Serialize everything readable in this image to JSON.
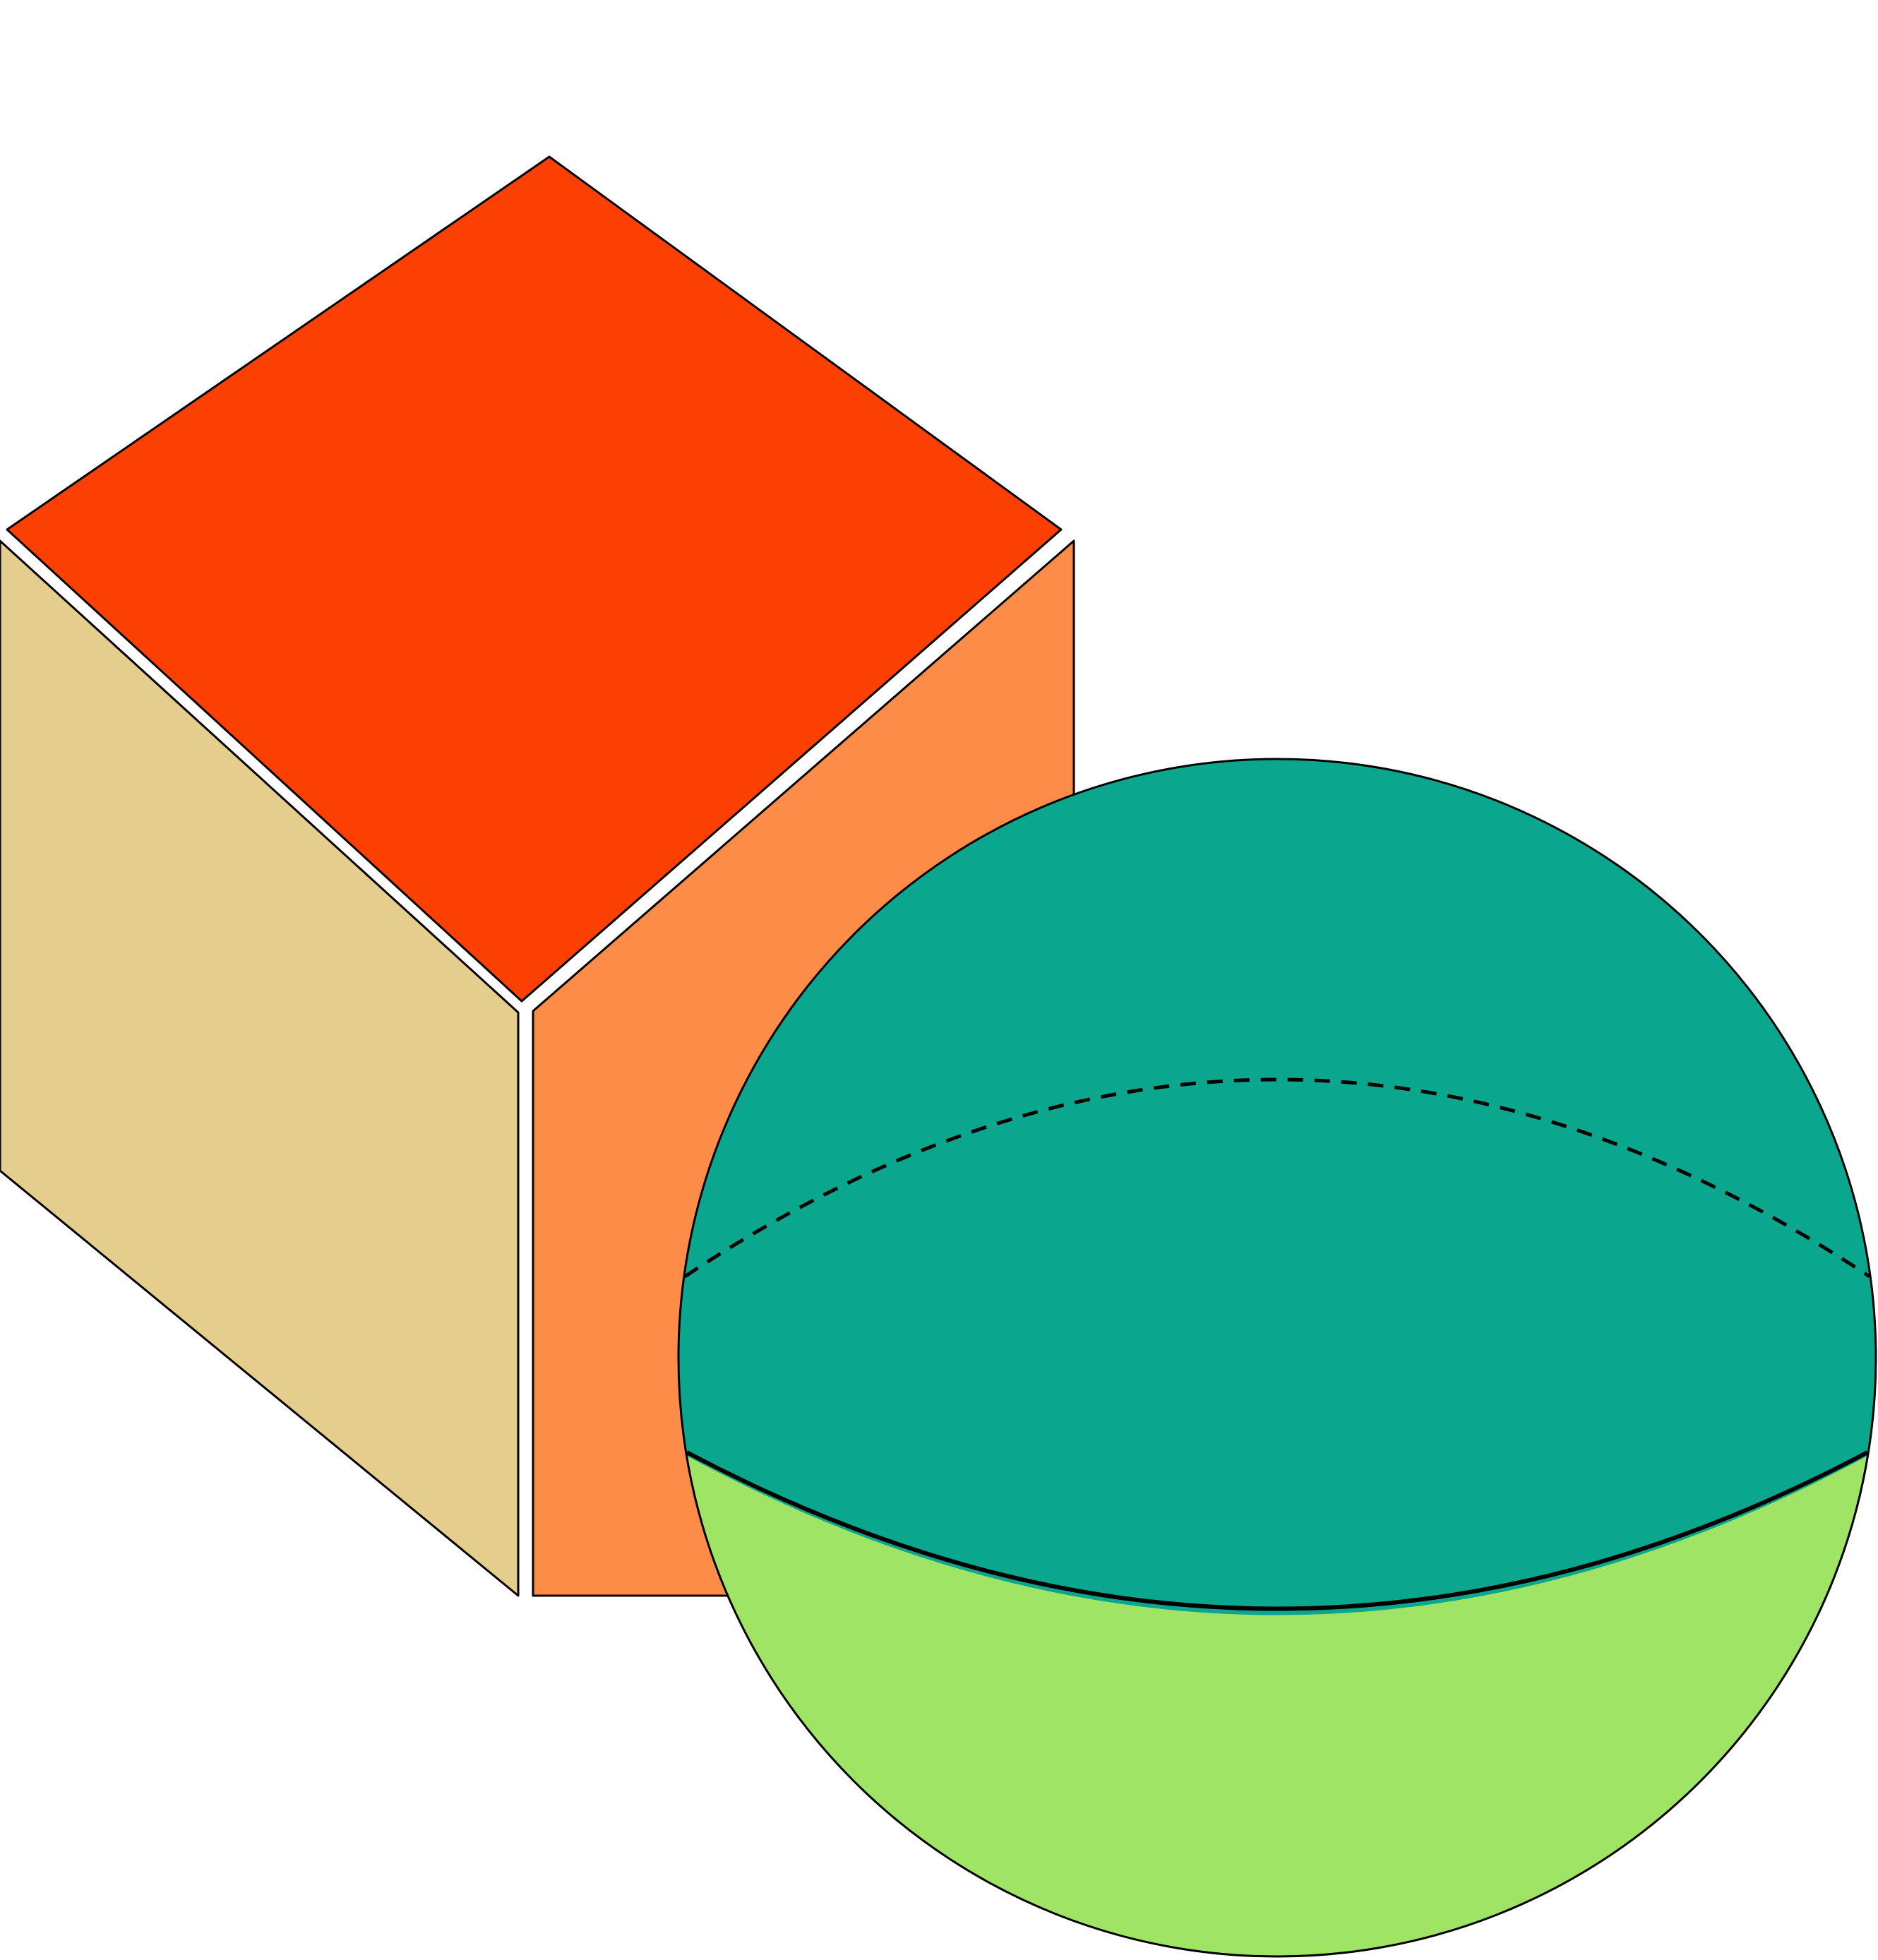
{
  "colors": {
    "background": "#ffffff",
    "outline": "#000000",
    "cube_top": "#fc4004",
    "cube_left": "#e5cd8e",
    "cube_right": "#fd8c48",
    "sphere_upper": "#0ba68e",
    "sphere_lower": "#a0e466"
  },
  "shapes": {
    "cube": {
      "faces": [
        "top",
        "left",
        "right"
      ]
    },
    "sphere": {
      "hidden_equator": "dashed",
      "visible_equator": "solid"
    }
  }
}
